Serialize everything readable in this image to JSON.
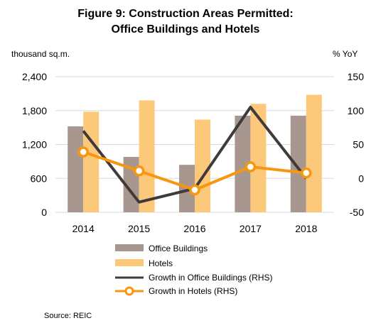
{
  "chart_data": {
    "type": "bar",
    "title_line1": "Figure 9: Construction Areas Permitted:",
    "title_line2": "Office Buildings and Hotels",
    "y_left_label": "thousand sq.m.",
    "y_right_label": "% YoY",
    "categories": [
      "2014",
      "2015",
      "2016",
      "2017",
      "2018"
    ],
    "y_left_ticks": [
      "2,400",
      "1,800",
      "1,200",
      "600",
      "0"
    ],
    "y_left_tick_values": [
      2400,
      1800,
      1200,
      600,
      0
    ],
    "y_right_ticks": [
      "150",
      "100",
      "50",
      "0",
      "-50"
    ],
    "y_right_tick_values": [
      150,
      100,
      50,
      0,
      -50
    ],
    "ylim_left": [
      0,
      2400
    ],
    "ylim_right": [
      -50,
      150
    ],
    "grid": true,
    "legend_position": "bottom",
    "series": [
      {
        "name": "Office Buildings",
        "kind": "bar",
        "axis": "left",
        "color": "#a8978f",
        "values": [
          1520,
          980,
          840,
          1710,
          1710
        ]
      },
      {
        "name": "Hotels",
        "kind": "bar",
        "axis": "left",
        "color": "#fcc97b",
        "values": [
          1780,
          1980,
          1640,
          1920,
          2080
        ]
      },
      {
        "name": "Growth in Office Buildings (RHS)",
        "kind": "line",
        "axis": "right",
        "color": "#403a3a",
        "values": [
          70,
          -35,
          -15,
          105,
          0
        ]
      },
      {
        "name": "Growth in Hotels (RHS)",
        "kind": "line-marker",
        "axis": "right",
        "color": "#f7960f",
        "values": [
          39,
          11,
          -17,
          17,
          8
        ]
      }
    ],
    "source": "Source: REIC"
  }
}
